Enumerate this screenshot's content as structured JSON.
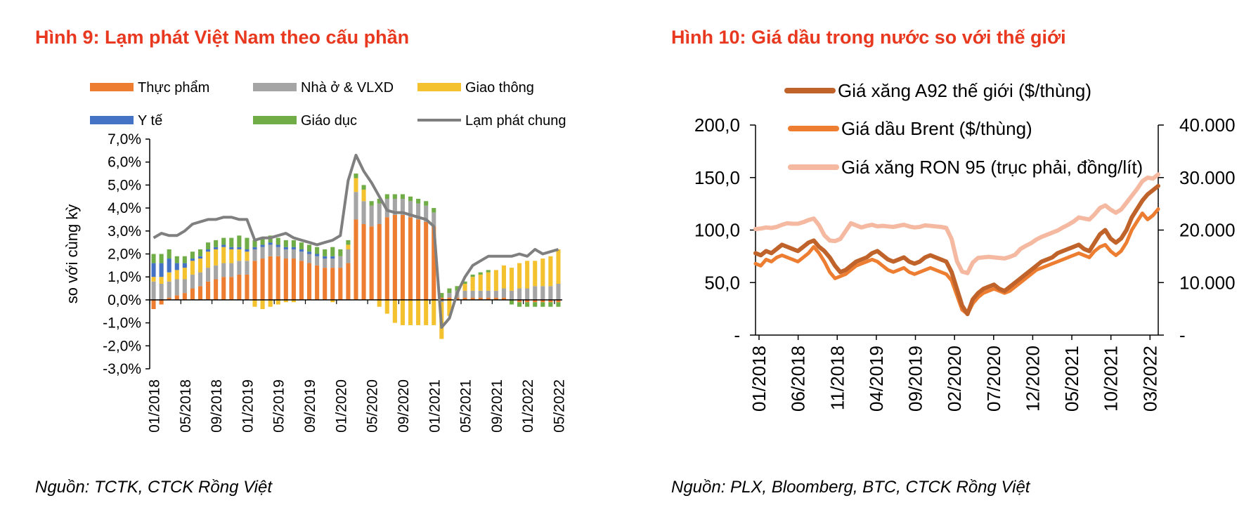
{
  "chart_data": [
    {
      "type": "bar",
      "stacked": true,
      "title": "Hình 9: Lạm phát Việt Nam theo cấu phần",
      "ylabel": "so với cùng kỳ",
      "xlabel": "",
      "ylim": [
        -3,
        7
      ],
      "yticks": [
        "7,0%",
        "6,0%",
        "5,0%",
        "4,0%",
        "3,0%",
        "2,0%",
        "1,0%",
        "0,0%",
        "-1,0%",
        "-2,0%",
        "-3,0%"
      ],
      "x_tick_labels": [
        "01/2018",
        "05/2018",
        "09/2018",
        "01/2019",
        "05/2019",
        "09/2019",
        "01/2020",
        "05/2020",
        "09/2020",
        "01/2021",
        "05/2021",
        "09/2021",
        "01/2022",
        "05/2022"
      ],
      "legend_position": "top",
      "series": [
        {
          "name": "Thực phẩm",
          "color": "#ed7d31",
          "values": [
            -0.4,
            -0.2,
            0.1,
            0.2,
            0.3,
            0.5,
            0.6,
            0.8,
            0.9,
            1.0,
            1.0,
            1.1,
            1.1,
            1.7,
            1.8,
            1.9,
            1.9,
            1.8,
            1.8,
            1.7,
            1.6,
            1.5,
            1.4,
            1.4,
            1.4,
            1.6,
            3.5,
            3.3,
            3.2,
            3.3,
            3.6,
            3.7,
            3.7,
            3.6,
            3.5,
            3.4,
            3.2,
            0.1,
            0.1,
            0.1,
            0.1,
            0.1,
            0.1,
            0.1,
            0.1,
            0.1,
            0.0,
            -0.1,
            -0.1,
            -0.1,
            -0.1,
            -0.1,
            -0.1
          ]
        },
        {
          "name": "Nhà ở & VLXD",
          "color": "#a5a5a5",
          "values": [
            0.8,
            0.7,
            0.7,
            0.7,
            0.6,
            0.6,
            0.6,
            0.6,
            0.6,
            0.6,
            0.6,
            0.6,
            0.6,
            0.5,
            0.5,
            0.5,
            0.4,
            0.4,
            0.4,
            0.4,
            0.4,
            0.4,
            0.4,
            0.4,
            0.5,
            0.6,
            1.2,
            1.0,
            0.9,
            0.9,
            0.8,
            0.7,
            0.7,
            0.7,
            0.7,
            0.7,
            0.6,
            -0.1,
            0.2,
            0.3,
            0.3,
            0.3,
            0.3,
            0.3,
            0.3,
            0.4,
            0.4,
            0.5,
            0.5,
            0.6,
            0.6,
            0.6,
            0.7
          ]
        },
        {
          "name": "Giao thông",
          "color": "#f4c12f",
          "values": [
            0.2,
            0.3,
            0.4,
            0.4,
            0.5,
            0.6,
            0.6,
            0.7,
            0.7,
            0.7,
            0.6,
            0.5,
            0.4,
            -0.3,
            -0.4,
            -0.3,
            -0.2,
            -0.1,
            -0.1,
            0.0,
            0.0,
            0.0,
            0.0,
            -0.1,
            0.0,
            0.2,
            0.6,
            0.5,
            0.0,
            -0.3,
            -0.6,
            -1.0,
            -1.1,
            -1.1,
            -1.1,
            -1.1,
            -1.1,
            -1.6,
            -0.7,
            0.0,
            0.3,
            0.6,
            0.7,
            0.8,
            0.9,
            1.0,
            1.0,
            1.1,
            1.2,
            1.1,
            1.2,
            1.3,
            1.5
          ]
        },
        {
          "name": "Y tế",
          "color": "#4472c4",
          "values": [
            0.6,
            0.6,
            0.6,
            0.3,
            0.2,
            0.1,
            0.1,
            0.1,
            0.1,
            0.1,
            0.1,
            0.1,
            0.1,
            0.1,
            0.1,
            0.1,
            0.1,
            0.1,
            0.1,
            0.1,
            0.1,
            0.1,
            0.1,
            0.1,
            0.0,
            0.0,
            0.0,
            0.0,
            0.0,
            0.0,
            0.0,
            0.0,
            0.0,
            0.0,
            0.0,
            0.0,
            0.0,
            0.0,
            0.0,
            0.0,
            0.0,
            0.0,
            0.0,
            0.0,
            0.0,
            0.0,
            0.0,
            0.0,
            0.0,
            0.0,
            0.0,
            0.0,
            0.0
          ]
        },
        {
          "name": "Giáo dục",
          "color": "#70ad47",
          "values": [
            0.4,
            0.4,
            0.4,
            0.3,
            0.3,
            0.3,
            0.3,
            0.3,
            0.3,
            0.3,
            0.4,
            0.5,
            0.5,
            0.3,
            0.3,
            0.3,
            0.3,
            0.3,
            0.3,
            0.3,
            0.3,
            0.3,
            0.3,
            0.4,
            0.3,
            0.2,
            0.2,
            0.2,
            0.2,
            0.2,
            0.2,
            0.2,
            0.2,
            0.2,
            0.2,
            0.2,
            0.2,
            0.2,
            0.2,
            0.2,
            0.1,
            0.1,
            0.1,
            0.1,
            0.0,
            0.0,
            -0.2,
            -0.2,
            -0.2,
            -0.2,
            -0.2,
            -0.2,
            -0.2
          ]
        }
      ],
      "line_series": {
        "name": "Lạm phát chung",
        "color": "#7f7f7f",
        "values": [
          2.7,
          2.9,
          2.8,
          2.8,
          3.0,
          3.3,
          3.4,
          3.5,
          3.5,
          3.6,
          3.6,
          3.5,
          3.5,
          2.6,
          2.7,
          2.7,
          2.8,
          2.9,
          2.7,
          2.6,
          2.5,
          2.4,
          2.5,
          2.6,
          2.8,
          5.2,
          6.3,
          5.6,
          5.1,
          4.5,
          3.9,
          3.8,
          3.8,
          3.7,
          3.6,
          3.5,
          3.2,
          -1.2,
          -0.8,
          0.3,
          1.0,
          1.5,
          1.7,
          1.9,
          1.9,
          1.9,
          1.9,
          2.0,
          1.9,
          2.2,
          2.0,
          2.1,
          2.2
        ]
      }
    },
    {
      "type": "line",
      "title": "Hình 10: Giá dầu trong nước so với thế giới",
      "y_left_range": [
        0,
        200
      ],
      "y_right_range": [
        0,
        40000
      ],
      "y_left_ticks": [
        "200,0",
        "150,0",
        "100,0",
        "50,0",
        "-"
      ],
      "y_right_ticks": [
        "40.000",
        "30.000",
        "20.000",
        "10.000",
        "-"
      ],
      "x_tick_labels": [
        "01/2018",
        "06/2018",
        "11/2018",
        "04/2019",
        "09/2019",
        "02/2020",
        "07/2020",
        "12/2020",
        "05/2021",
        "10/2021",
        "03/2022"
      ],
      "legend_position": "top-left",
      "series": [
        {
          "name": "Giá xăng A92 thế giới ($/thùng)",
          "axis": "left",
          "color": "#c0632b",
          "values": [
            78,
            76,
            80,
            78,
            82,
            86,
            84,
            82,
            80,
            84,
            88,
            90,
            84,
            80,
            74,
            66,
            60,
            62,
            66,
            70,
            72,
            74,
            78,
            80,
            76,
            72,
            70,
            72,
            74,
            70,
            68,
            70,
            74,
            76,
            74,
            72,
            70,
            60,
            44,
            28,
            20,
            34,
            40,
            44,
            46,
            48,
            44,
            42,
            46,
            50,
            54,
            58,
            62,
            66,
            70,
            72,
            74,
            78,
            80,
            82,
            84,
            86,
            82,
            80,
            88,
            96,
            100,
            92,
            88,
            92,
            100,
            112,
            120,
            128,
            134,
            138,
            142
          ]
        },
        {
          "name": "Giá dầu Brent ($/thùng)",
          "axis": "left",
          "color": "#ed7d31",
          "values": [
            68,
            66,
            72,
            70,
            74,
            76,
            74,
            72,
            70,
            74,
            78,
            84,
            78,
            70,
            60,
            54,
            56,
            58,
            62,
            66,
            68,
            70,
            72,
            70,
            66,
            62,
            60,
            62,
            64,
            60,
            58,
            60,
            62,
            64,
            62,
            60,
            58,
            52,
            38,
            24,
            20,
            30,
            36,
            40,
            42,
            44,
            42,
            40,
            42,
            46,
            50,
            54,
            58,
            62,
            64,
            66,
            68,
            70,
            72,
            74,
            76,
            78,
            76,
            74,
            80,
            84,
            86,
            80,
            76,
            80,
            88,
            100,
            108,
            116,
            110,
            114,
            120
          ]
        },
        {
          "name": "Giá xăng RON 95 (trục phải, đồng/lít)",
          "axis": "right",
          "color": "#f4b9a0",
          "values": [
            20200,
            20300,
            20500,
            20400,
            20600,
            21000,
            21300,
            21200,
            21200,
            21500,
            21900,
            22200,
            20900,
            19000,
            18000,
            17900,
            18300,
            19800,
            21300,
            20900,
            20500,
            20800,
            21000,
            20700,
            20800,
            20700,
            20600,
            20800,
            21000,
            20700,
            20500,
            20600,
            20900,
            20800,
            20700,
            20600,
            20400,
            18300,
            14100,
            12100,
            11800,
            13800,
            14700,
            14800,
            14900,
            14800,
            14700,
            14600,
            14900,
            15300,
            16400,
            17000,
            17500,
            18200,
            18700,
            19100,
            19500,
            19900,
            20500,
            21000,
            21600,
            22400,
            22200,
            22000,
            23000,
            24200,
            24700,
            23900,
            23300,
            23900,
            25200,
            26500,
            27800,
            29300,
            30000,
            29800,
            30600
          ]
        }
      ]
    }
  ],
  "titles": {
    "left": "Hình 9: Lạm phát Việt Nam theo cấu phần",
    "right": "Hình 10: Giá dầu trong nước so với thế giới"
  },
  "sources": {
    "left": "Nguồn: TCTK, CTCK Rồng Việt",
    "right": "Nguồn:  PLX, Bloomberg, BTC, CTCK Rồng Việt"
  }
}
